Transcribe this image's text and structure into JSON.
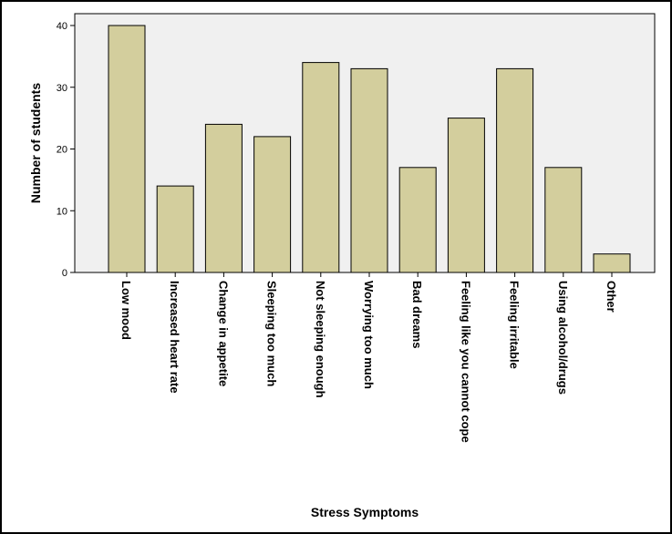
{
  "chart_data": {
    "type": "bar",
    "xlabel": "Stress Symptoms",
    "ylabel": "Number of students",
    "categories": [
      "Low mood",
      "Increased heart rate",
      "Change in appetite",
      "Sleeping too much",
      "Not sleeping enough",
      "Worrying too much",
      "Bad dreams",
      "Feeling like you cannot cope",
      "Feeling irritable",
      "Using alcohol/drugs",
      "Other"
    ],
    "values": [
      40,
      14,
      24,
      22,
      34,
      33,
      17,
      25,
      33,
      17,
      3
    ],
    "ylim": [
      0,
      40
    ],
    "yticks": [
      "0",
      "10",
      "20",
      "30",
      "40"
    ],
    "grid": false,
    "bar_color": "#d3ce9d",
    "plot_background": "#f0f0f0"
  }
}
